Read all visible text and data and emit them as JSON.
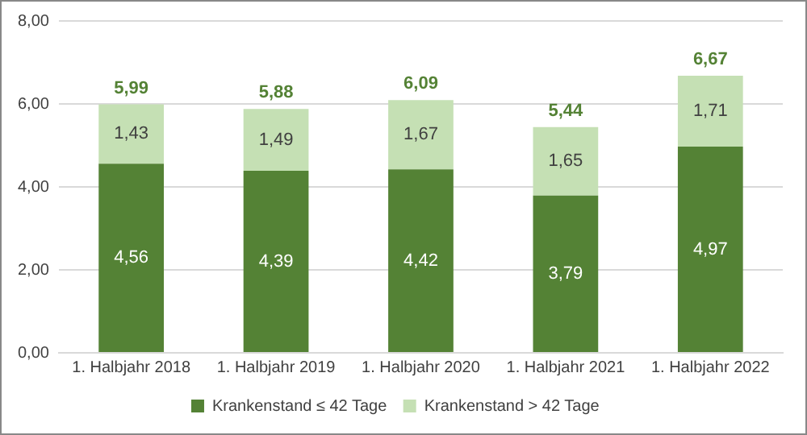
{
  "chart_data": {
    "type": "bar",
    "stacked": true,
    "categories": [
      "1. Halbjahr 2018",
      "1. Halbjahr 2019",
      "1. Halbjahr 2020",
      "1. Halbjahr 2021",
      "1. Halbjahr 2022"
    ],
    "series": [
      {
        "name": "Krankenstand ≤ 42 Tage",
        "color": "#548235",
        "values": [
          4.56,
          4.39,
          4.42,
          3.79,
          4.97
        ],
        "value_labels": [
          "4,56",
          "4,39",
          "4,42",
          "3,79",
          "4,97"
        ]
      },
      {
        "name": "Krankenstand > 42 Tage",
        "color": "#c5e0b4",
        "values": [
          1.43,
          1.49,
          1.67,
          1.65,
          1.71
        ],
        "value_labels": [
          "1,43",
          "1,49",
          "1,67",
          "1,65",
          "1,71"
        ]
      }
    ],
    "totals": [
      "5,99",
      "5,88",
      "6,09",
      "5,44",
      "6,67"
    ],
    "ylim": [
      0,
      8
    ],
    "yticks": [
      {
        "value": 0,
        "label": "0,00"
      },
      {
        "value": 2,
        "label": "2,00"
      },
      {
        "value": 4,
        "label": "4,00"
      },
      {
        "value": 6,
        "label": "6,00"
      },
      {
        "value": 8,
        "label": "8,00"
      }
    ],
    "grid": "y",
    "legend": "bottom"
  }
}
